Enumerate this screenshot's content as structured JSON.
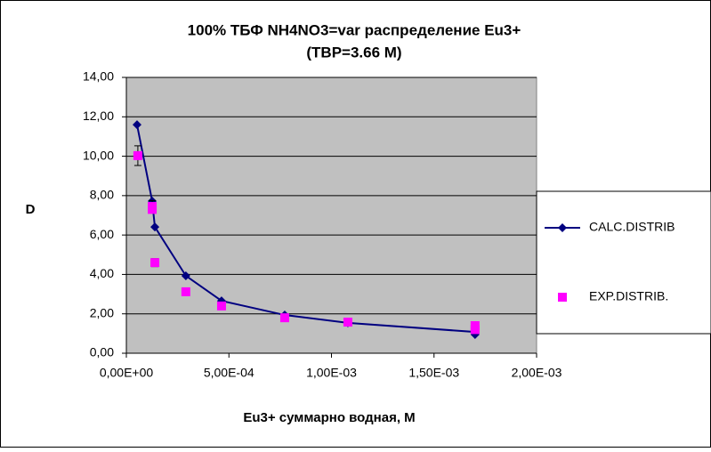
{
  "chart_data": {
    "type": "scatter",
    "title": [
      "100%  ТБФ  NH4NO3=var распределение Eu3+",
      "(TBP=3.66 M)"
    ],
    "x_label": "Eu3+ суммарно   водная, М",
    "y_label": "D",
    "xlim": [
      0,
      0.002
    ],
    "xticks": [
      {
        "value": 0,
        "label": "0,00E+00"
      },
      {
        "value": 0.0005,
        "label": "5,00E-04"
      },
      {
        "value": 0.001,
        "label": "1,00E-03"
      },
      {
        "value": 0.0015,
        "label": "1,50E-03"
      },
      {
        "value": 0.002,
        "label": "2,00E-03"
      }
    ],
    "ylim": [
      0,
      14
    ],
    "yticks": [
      {
        "value": 0,
        "label": "0,00"
      },
      {
        "value": 2,
        "label": "2,00"
      },
      {
        "value": 4,
        "label": "4,00"
      },
      {
        "value": 6,
        "label": "6,00"
      },
      {
        "value": 8,
        "label": "8,00"
      },
      {
        "value": 10,
        "label": "10,00"
      },
      {
        "value": 12,
        "label": "12,00"
      },
      {
        "value": 14,
        "label": "14,00"
      }
    ],
    "grid": true,
    "legend": "right",
    "series": [
      {
        "name": "CALC.DISTRIB",
        "color": "#000080",
        "marker": "diamond",
        "line": true,
        "x": [
          5.2e-05,
          0.000126,
          0.000139,
          0.00029,
          0.000464,
          0.000772,
          0.00108,
          0.0017,
          0.0017
        ],
        "values": [
          11.6,
          7.72,
          6.41,
          3.93,
          2.66,
          1.94,
          1.54,
          1.08,
          0.95
        ]
      },
      {
        "name": "EXP.DISTRIB.",
        "color": "#ff00ff",
        "marker": "square",
        "line": false,
        "x": [
          5.6e-05,
          0.000126,
          0.000126,
          0.000139,
          0.00029,
          0.000464,
          0.000772,
          0.00108,
          0.0017,
          0.0017
        ],
        "values": [
          10.03,
          7.45,
          7.3,
          4.6,
          3.12,
          2.4,
          1.8,
          1.58,
          1.4,
          1.2
        ],
        "errors": [
          0.5,
          0.3,
          null,
          0.2,
          null,
          null,
          null,
          null,
          null,
          null
        ]
      }
    ]
  }
}
